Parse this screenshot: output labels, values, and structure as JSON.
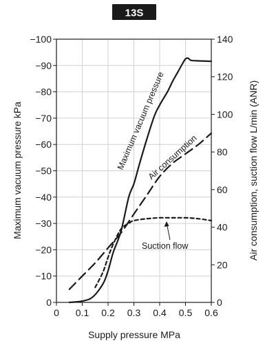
{
  "badge": "13S",
  "colors": {
    "ink": "#1a1a1a",
    "grid": "#d0d0d0",
    "background": "#ffffff"
  },
  "chart_data": {
    "type": "line",
    "title": "13S",
    "xlabel": "Supply pressure MPa",
    "ylabel": "Maximum vacuum pressure  kPa",
    "y2label": "Air consumption, suction flow L/min (ANR)",
    "xlim": [
      0,
      0.6
    ],
    "ylim": [
      0,
      -100
    ],
    "y2lim": [
      0,
      140
    ],
    "grid": true,
    "x_ticks": [
      "0",
      "0.1",
      "0.2",
      "0.3",
      "0.4",
      "0.5",
      "0.6"
    ],
    "y_ticks": [
      "0",
      "−10",
      "−20",
      "−30",
      "−40",
      "−50",
      "−60",
      "−70",
      "−80",
      "−90",
      "−100"
    ],
    "y2_ticks": [
      "0",
      "20",
      "40",
      "60",
      "80",
      "100",
      "120",
      "140"
    ],
    "series": [
      {
        "name": "Maximum vacuum pressure",
        "axis": "left",
        "style": "solid",
        "x": [
          0.05,
          0.1,
          0.14,
          0.18,
          0.2,
          0.22,
          0.25,
          0.28,
          0.3,
          0.32,
          0.35,
          0.38,
          0.4,
          0.43,
          0.45,
          0.47,
          0.49,
          0.5,
          0.51,
          0.52,
          0.54,
          0.6
        ],
        "y": [
          0,
          -0.5,
          -2,
          -7,
          -12,
          -19,
          -27,
          -40,
          -45,
          -52,
          -62,
          -71,
          -75,
          -80,
          -84,
          -87.5,
          -91,
          -92.5,
          -92.8,
          -92,
          -91.8,
          -91.6
        ]
      },
      {
        "name": "Air consumption",
        "axis": "right",
        "style": "dashed",
        "x": [
          0.05,
          0.1,
          0.15,
          0.2,
          0.25,
          0.3,
          0.35,
          0.4,
          0.45,
          0.5,
          0.55,
          0.6
        ],
        "y": [
          7,
          14,
          21,
          29,
          37,
          47,
          57,
          67,
          74,
          79,
          84,
          90
        ]
      },
      {
        "name": "Suction flow",
        "axis": "right",
        "style": "short-dashed",
        "x": [
          0.15,
          0.18,
          0.2,
          0.22,
          0.25,
          0.28,
          0.3,
          0.35,
          0.4,
          0.45,
          0.5,
          0.55,
          0.6
        ],
        "y": [
          8,
          16,
          24,
          31,
          39,
          42,
          43.5,
          44.5,
          45,
          45,
          45,
          44.5,
          43.5
        ]
      }
    ],
    "annotations": [
      {
        "text": "Maximum vacuum pressure",
        "target": "Maximum vacuum pressure"
      },
      {
        "text": "Air consumption",
        "target": "Air consumption"
      },
      {
        "text": "Suction flow",
        "target": "Suction flow"
      }
    ]
  }
}
